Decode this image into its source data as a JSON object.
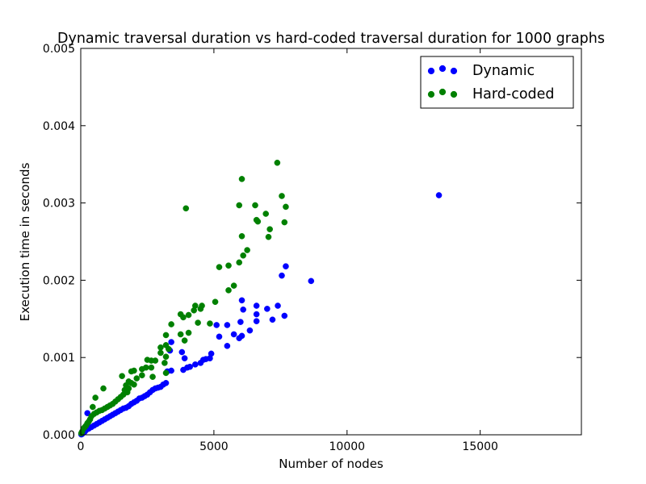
{
  "chart_data": {
    "type": "scatter",
    "title": "Dynamic traversal duration vs hard-coded traversal duration for 1000 graphs",
    "xlabel": "Number of nodes",
    "ylabel": "Execution time in seconds",
    "xlim": [
      0,
      18800
    ],
    "ylim": [
      0,
      0.005
    ],
    "xticks": [
      0,
      5000,
      10000,
      15000
    ],
    "xtick_labels": [
      "0",
      "5000",
      "10000",
      "15000"
    ],
    "yticks": [
      0,
      0.001,
      0.002,
      0.003,
      0.004,
      0.005
    ],
    "ytick_labels": [
      "0.000",
      "0.001",
      "0.002",
      "0.003",
      "0.004",
      "0.005"
    ],
    "grid": false,
    "legend_position": "top-right",
    "series": [
      {
        "name": "Dynamic",
        "color": "#0000ff",
        "points": [
          [
            13450,
            0.0031
          ],
          [
            8650,
            0.00199
          ],
          [
            7700,
            0.00218
          ],
          [
            7550,
            0.00206
          ],
          [
            7650,
            0.00154
          ],
          [
            7400,
            0.00167
          ],
          [
            7200,
            0.00149
          ],
          [
            7000,
            0.00163
          ],
          [
            6600,
            0.00167
          ],
          [
            6600,
            0.00156
          ],
          [
            6600,
            0.00147
          ],
          [
            6350,
            0.00135
          ],
          [
            6050,
            0.00174
          ],
          [
            6100,
            0.00162
          ],
          [
            6000,
            0.00146
          ],
          [
            6050,
            0.00128
          ],
          [
            5950,
            0.00125
          ],
          [
            5750,
            0.0013
          ],
          [
            5500,
            0.00142
          ],
          [
            5500,
            0.00115
          ],
          [
            5100,
            0.00142
          ],
          [
            5200,
            0.00127
          ],
          [
            4900,
            0.00105
          ],
          [
            4850,
            0.00099
          ],
          [
            4700,
            0.00098
          ],
          [
            4600,
            0.00097
          ],
          [
            4500,
            0.00093
          ],
          [
            4300,
            0.00091
          ],
          [
            4100,
            0.00088
          ],
          [
            4000,
            0.00087
          ],
          [
            3850,
            0.00084
          ],
          [
            3900,
            0.00099
          ],
          [
            3800,
            0.00107
          ],
          [
            3400,
            0.0012
          ],
          [
            3350,
            0.00109
          ],
          [
            3400,
            0.00083
          ],
          [
            3250,
            0.00082
          ],
          [
            3200,
            0.00067
          ],
          [
            3100,
            0.00065
          ],
          [
            3000,
            0.00062
          ],
          [
            2900,
            0.00061
          ],
          [
            2800,
            0.0006
          ],
          [
            2700,
            0.00058
          ],
          [
            2600,
            0.00055
          ],
          [
            2500,
            0.00052
          ],
          [
            2400,
            0.0005
          ],
          [
            2300,
            0.00048
          ],
          [
            2200,
            0.00047
          ],
          [
            2100,
            0.00044
          ],
          [
            2000,
            0.00042
          ],
          [
            1900,
            0.0004
          ],
          [
            1800,
            0.00037
          ],
          [
            1700,
            0.00035
          ],
          [
            1600,
            0.00034
          ],
          [
            1500,
            0.00032
          ],
          [
            1400,
            0.0003
          ],
          [
            1300,
            0.00028
          ],
          [
            1200,
            0.00026
          ],
          [
            1100,
            0.00024
          ],
          [
            1000,
            0.00022
          ],
          [
            900,
            0.0002
          ],
          [
            800,
            0.00018
          ],
          [
            700,
            0.00016
          ],
          [
            600,
            0.00014
          ],
          [
            500,
            0.00012
          ],
          [
            400,
            0.0001
          ],
          [
            300,
            8e-05
          ],
          [
            250,
            0.00028
          ],
          [
            200,
            6e-05
          ],
          [
            150,
            4e-05
          ],
          [
            100,
            3e-05
          ],
          [
            50,
            1e-05
          ],
          [
            20,
            5e-06
          ]
        ]
      },
      {
        "name": "Hard-coded",
        "color": "#008000",
        "points": [
          [
            7380,
            0.00352
          ],
          [
            6050,
            0.00331
          ],
          [
            7550,
            0.00309
          ],
          [
            6550,
            0.00297
          ],
          [
            5950,
            0.00297
          ],
          [
            7700,
            0.00295
          ],
          [
            3950,
            0.00293
          ],
          [
            6950,
            0.00286
          ],
          [
            6600,
            0.00278
          ],
          [
            6650,
            0.00276
          ],
          [
            7650,
            0.00275
          ],
          [
            7100,
            0.00266
          ],
          [
            7050,
            0.00256
          ],
          [
            6050,
            0.00257
          ],
          [
            6250,
            0.00239
          ],
          [
            6100,
            0.00232
          ],
          [
            5950,
            0.00223
          ],
          [
            5550,
            0.00219
          ],
          [
            5200,
            0.00217
          ],
          [
            5750,
            0.00193
          ],
          [
            5550,
            0.00187
          ],
          [
            5050,
            0.00172
          ],
          [
            4550,
            0.00167
          ],
          [
            4300,
            0.00167
          ],
          [
            4500,
            0.00163
          ],
          [
            4250,
            0.00161
          ],
          [
            3750,
            0.00156
          ],
          [
            4050,
            0.00155
          ],
          [
            3850,
            0.00152
          ],
          [
            4850,
            0.00144
          ],
          [
            4400,
            0.00145
          ],
          [
            3400,
            0.00143
          ],
          [
            3750,
            0.0013
          ],
          [
            4050,
            0.00132
          ],
          [
            3200,
            0.00129
          ],
          [
            3900,
            0.00122
          ],
          [
            3200,
            0.00116
          ],
          [
            3000,
            0.00113
          ],
          [
            3300,
            0.00111
          ],
          [
            3000,
            0.00106
          ],
          [
            3200,
            0.00101
          ],
          [
            2800,
            0.00096
          ],
          [
            2500,
            0.00097
          ],
          [
            2650,
            0.00096
          ],
          [
            3150,
            0.00093
          ],
          [
            2650,
            0.00087
          ],
          [
            2450,
            0.00087
          ],
          [
            2300,
            0.00085
          ],
          [
            2000,
            0.00083
          ],
          [
            1900,
            0.00082
          ],
          [
            3200,
            0.0008
          ],
          [
            2700,
            0.00075
          ],
          [
            2300,
            0.00077
          ],
          [
            1550,
            0.00076
          ],
          [
            2100,
            0.00073
          ],
          [
            1800,
            0.00069
          ],
          [
            1900,
            0.00067
          ],
          [
            2000,
            0.00065
          ],
          [
            1700,
            0.00064
          ],
          [
            1800,
            0.0006
          ],
          [
            1650,
            0.00058
          ],
          [
            1750,
            0.00055
          ],
          [
            1600,
            0.00052
          ],
          [
            1500,
            0.00049
          ],
          [
            1400,
            0.00046
          ],
          [
            1300,
            0.00043
          ],
          [
            1200,
            0.0004
          ],
          [
            1100,
            0.00038
          ],
          [
            1000,
            0.00036
          ],
          [
            900,
            0.00034
          ],
          [
            850,
            0.0006
          ],
          [
            800,
            0.00032
          ],
          [
            700,
            0.00031
          ],
          [
            600,
            0.00029
          ],
          [
            550,
            0.00048
          ],
          [
            500,
            0.00027
          ],
          [
            450,
            0.00036
          ],
          [
            400,
            0.00024
          ],
          [
            350,
            0.0002
          ],
          [
            300,
            0.00017
          ],
          [
            250,
            0.00015
          ],
          [
            200,
            0.00012
          ],
          [
            150,
            0.0001
          ],
          [
            100,
            8e-05
          ],
          [
            50,
            4e-05
          ],
          [
            20,
            2e-05
          ]
        ]
      }
    ]
  }
}
